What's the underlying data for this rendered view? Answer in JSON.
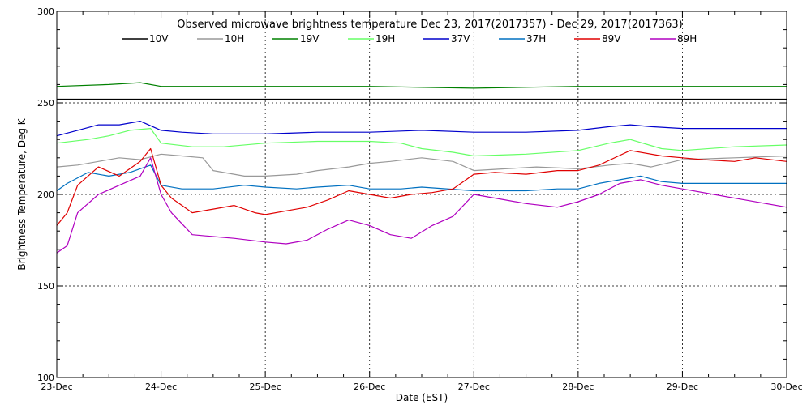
{
  "chart_data": {
    "type": "line",
    "title": "Observed microwave brightness temperature Dec 23, 2017(2017357) - Dec 29, 2017(2017363)",
    "xlabel": "Date (EST)",
    "ylabel": "Brightness Temperature, Deg K",
    "xlim": [
      0,
      7
    ],
    "ylim": [
      100,
      300
    ],
    "x_ticks": [
      {
        "value": 0,
        "label": "23-Dec"
      },
      {
        "value": 1,
        "label": "24-Dec"
      },
      {
        "value": 2,
        "label": "25-Dec"
      },
      {
        "value": 3,
        "label": "26-Dec"
      },
      {
        "value": 4,
        "label": "27-Dec"
      },
      {
        "value": 5,
        "label": "28-Dec"
      },
      {
        "value": 6,
        "label": "29-Dec"
      },
      {
        "value": 7,
        "label": "30-Dec"
      }
    ],
    "y_ticks": [
      {
        "value": 100,
        "label": "100"
      },
      {
        "value": 150,
        "label": "150"
      },
      {
        "value": 200,
        "label": "200"
      },
      {
        "value": 250,
        "label": "250"
      },
      {
        "value": 300,
        "label": "300"
      }
    ],
    "grid": "dotted",
    "legend_position": "top",
    "series": [
      {
        "name": "10V",
        "color": "#000000",
        "x": [
          0,
          0.5,
          1,
          1.5,
          2,
          2.5,
          3,
          3.5,
          4,
          4.5,
          5,
          5.5,
          6,
          6.5,
          7
        ],
        "values": [
          252,
          252,
          252,
          252,
          252,
          252,
          252,
          252,
          252,
          252,
          252,
          252,
          252,
          252,
          252
        ]
      },
      {
        "name": "10H",
        "color": "#999999",
        "x": [
          0,
          0.2,
          0.4,
          0.6,
          0.8,
          1,
          1.2,
          1.4,
          1.5,
          1.8,
          2,
          2.3,
          2.5,
          2.8,
          3,
          3.2,
          3.5,
          3.8,
          4,
          4.3,
          4.6,
          5,
          5.3,
          5.5,
          5.7,
          6,
          6.5,
          7
        ],
        "values": [
          215,
          216,
          218,
          220,
          219,
          222,
          221,
          220,
          213,
          210,
          210,
          211,
          213,
          215,
          217,
          218,
          220,
          218,
          213,
          214,
          215,
          214,
          216,
          217,
          215,
          219,
          220,
          221
        ]
      },
      {
        "name": "19V",
        "color": "#008000",
        "x": [
          0,
          0.5,
          0.8,
          1,
          1.5,
          2,
          3,
          4,
          5,
          6,
          7
        ],
        "values": [
          259,
          260,
          261,
          259,
          259,
          259,
          259,
          258,
          259,
          259,
          259
        ]
      },
      {
        "name": "19H",
        "color": "#66ff66",
        "x": [
          0,
          0.3,
          0.5,
          0.7,
          0.9,
          1,
          1.3,
          1.6,
          2,
          2.5,
          3,
          3.3,
          3.5,
          3.8,
          4,
          4.5,
          5,
          5.3,
          5.5,
          5.8,
          6,
          6.5,
          7
        ],
        "values": [
          228,
          230,
          232,
          235,
          236,
          228,
          226,
          226,
          228,
          229,
          229,
          228,
          225,
          223,
          221,
          222,
          224,
          228,
          230,
          225,
          224,
          226,
          227
        ]
      },
      {
        "name": "37V",
        "color": "#0000cc",
        "x": [
          0,
          0.2,
          0.4,
          0.6,
          0.8,
          1,
          1.2,
          1.5,
          2,
          2.5,
          3,
          3.5,
          4,
          4.5,
          5,
          5.3,
          5.5,
          5.7,
          6,
          6.5,
          7
        ],
        "values": [
          232,
          235,
          238,
          238,
          240,
          235,
          234,
          233,
          233,
          234,
          234,
          235,
          234,
          234,
          235,
          237,
          238,
          237,
          236,
          236,
          236
        ]
      },
      {
        "name": "37H",
        "color": "#0070c0",
        "x": [
          0,
          0.1,
          0.3,
          0.5,
          0.7,
          0.9,
          1,
          1.2,
          1.5,
          1.8,
          2,
          2.3,
          2.5,
          2.8,
          3,
          3.3,
          3.5,
          4,
          4.5,
          4.8,
          5,
          5.2,
          5.4,
          5.6,
          5.8,
          6,
          6.5,
          7
        ],
        "values": [
          202,
          206,
          212,
          210,
          212,
          216,
          205,
          203,
          203,
          205,
          204,
          203,
          204,
          205,
          203,
          203,
          204,
          202,
          202,
          203,
          203,
          206,
          208,
          210,
          207,
          206,
          206,
          206
        ]
      },
      {
        "name": "89V",
        "color": "#e00000",
        "x": [
          0,
          0.1,
          0.2,
          0.4,
          0.6,
          0.8,
          0.9,
          1,
          1.1,
          1.3,
          1.5,
          1.7,
          1.9,
          2,
          2.2,
          2.4,
          2.6,
          2.8,
          3,
          3.2,
          3.4,
          3.6,
          3.8,
          4,
          4.2,
          4.5,
          4.8,
          5,
          5.2,
          5.5,
          5.8,
          6,
          6.2,
          6.5,
          6.7,
          7
        ],
        "values": [
          183,
          190,
          205,
          215,
          210,
          218,
          225,
          205,
          198,
          190,
          192,
          194,
          190,
          189,
          191,
          193,
          197,
          202,
          200,
          198,
          200,
          201,
          203,
          211,
          212,
          211,
          213,
          213,
          216,
          224,
          221,
          220,
          219,
          218,
          220,
          218
        ]
      },
      {
        "name": "89H",
        "color": "#b000c0",
        "x": [
          0,
          0.1,
          0.2,
          0.4,
          0.6,
          0.8,
          0.9,
          1,
          1.1,
          1.3,
          1.5,
          1.7,
          2,
          2.2,
          2.4,
          2.6,
          2.8,
          3,
          3.2,
          3.4,
          3.6,
          3.8,
          4,
          4.2,
          4.5,
          4.8,
          5,
          5.2,
          5.4,
          5.6,
          5.8,
          6,
          6.3,
          6.6,
          7
        ],
        "values": [
          168,
          172,
          190,
          200,
          205,
          210,
          220,
          200,
          190,
          178,
          177,
          176,
          174,
          173,
          175,
          181,
          186,
          183,
          178,
          176,
          183,
          188,
          200,
          198,
          195,
          193,
          196,
          200,
          206,
          208,
          205,
          203,
          200,
          197,
          193
        ]
      }
    ]
  }
}
